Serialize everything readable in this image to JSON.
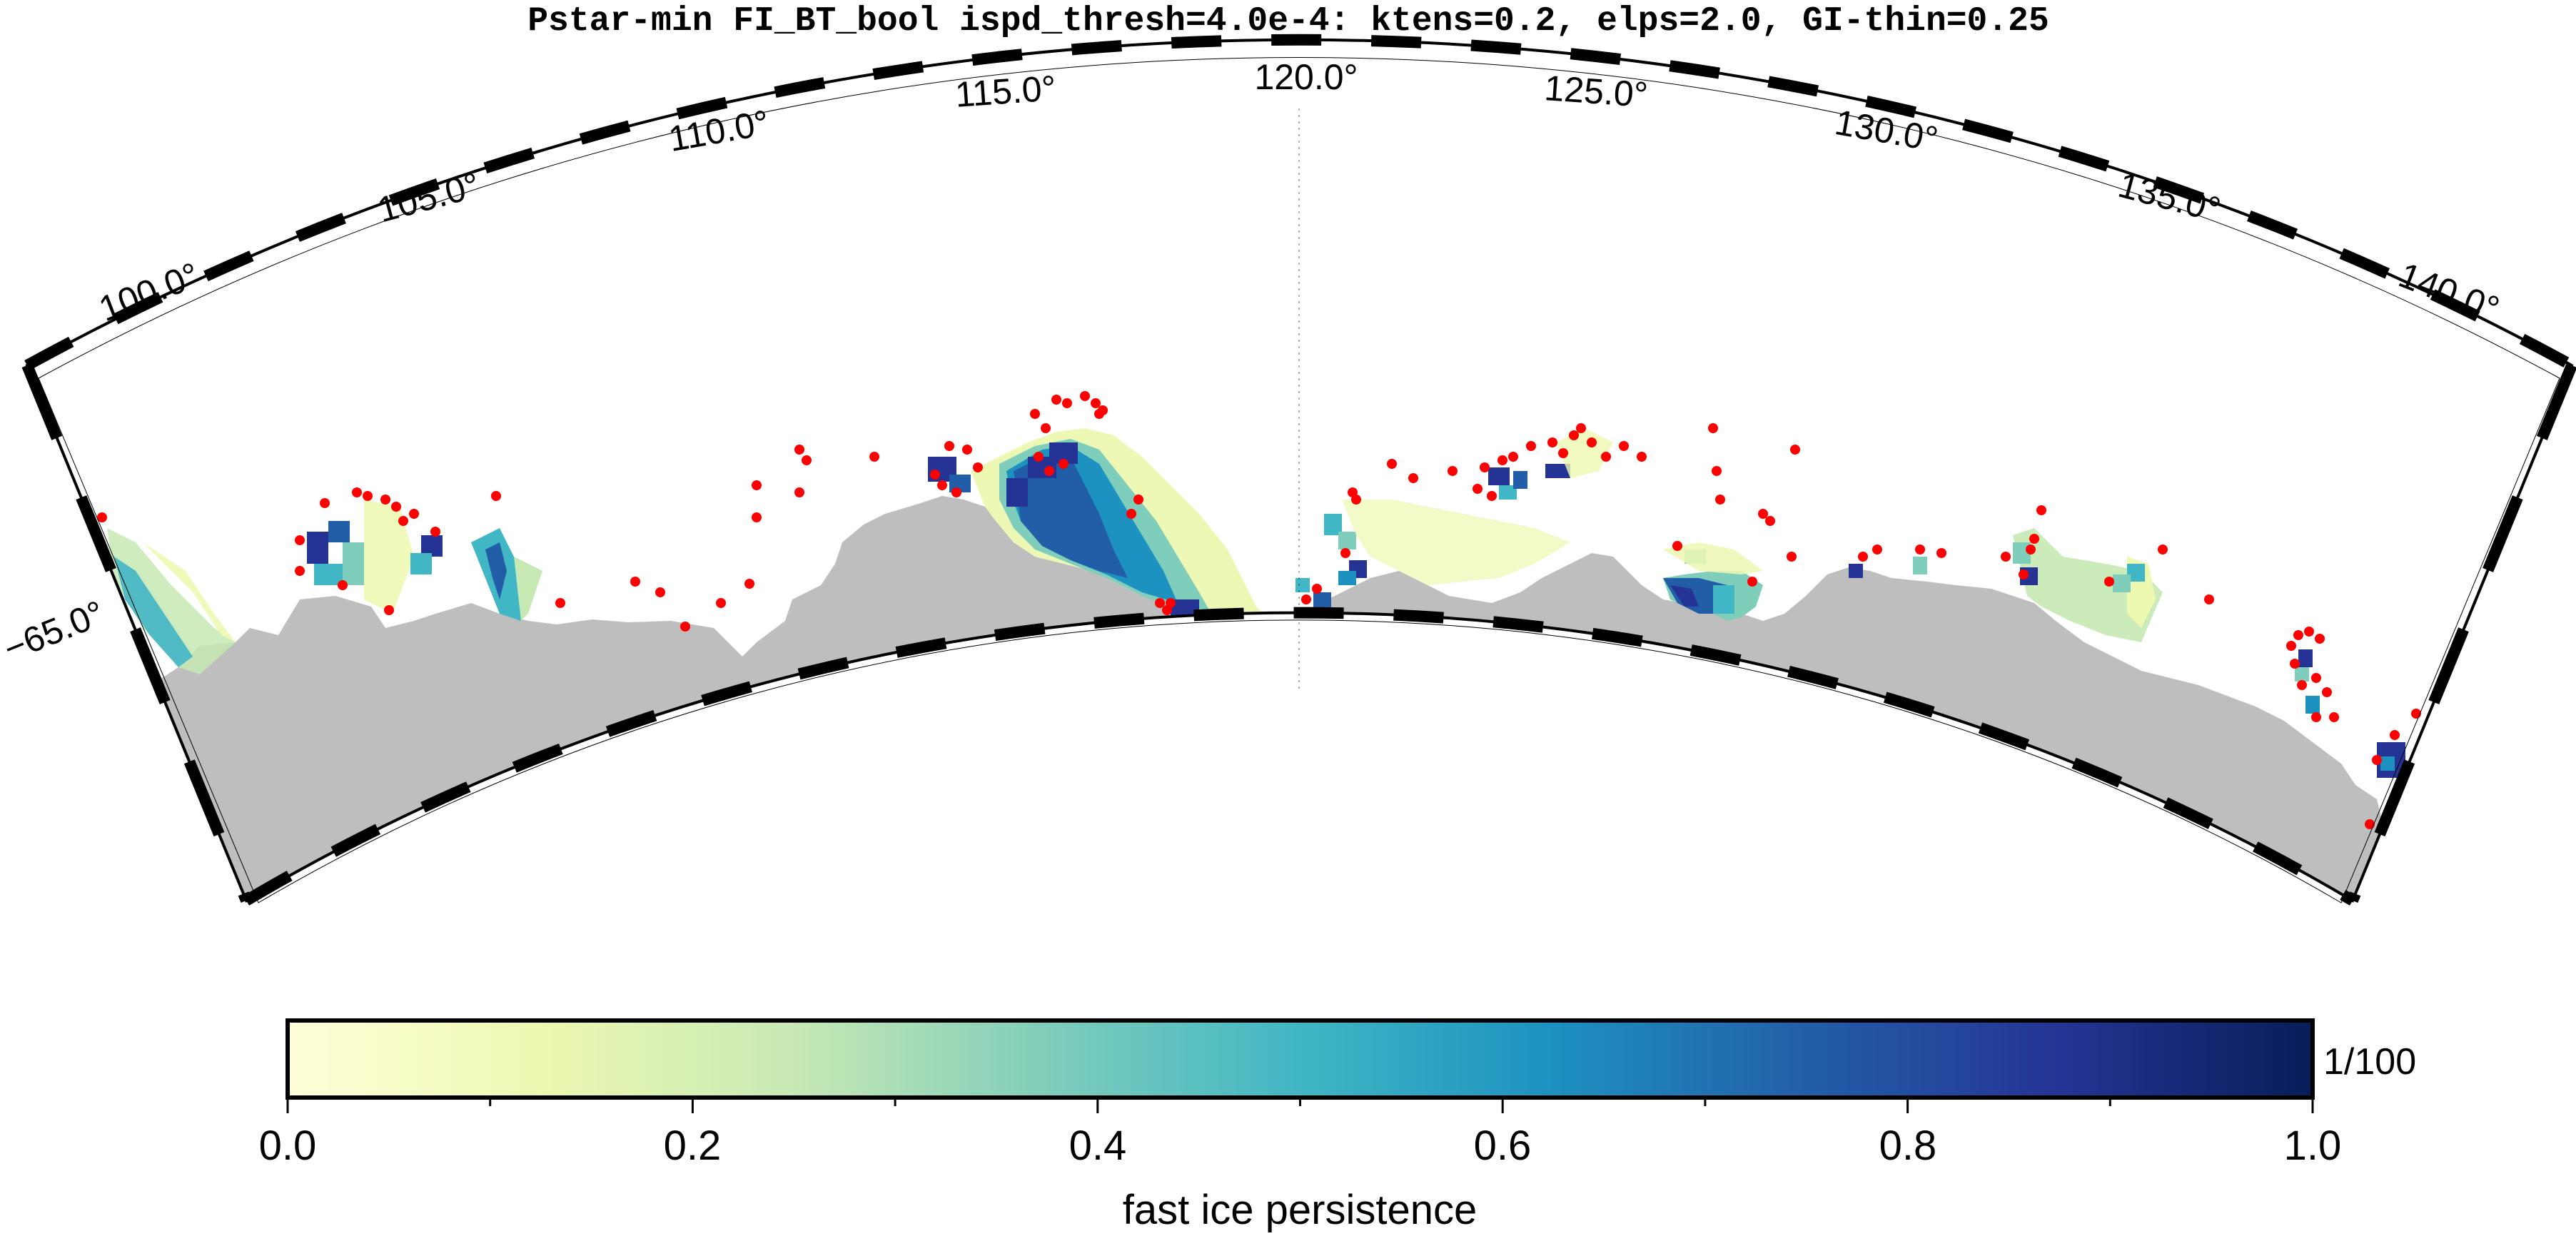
{
  "title": "Pstar-min FI_BT_bool ispd_thresh=4.0e-4: ktens=0.2, elps=2.0, GI-thin=0.25",
  "map": {
    "lon_labels": [
      {
        "value": 100.0,
        "text": "100.0°"
      },
      {
        "value": 105.0,
        "text": "105.0°"
      },
      {
        "value": 110.0,
        "text": "110.0°"
      },
      {
        "value": 115.0,
        "text": "115.0°"
      },
      {
        "value": 120.0,
        "text": "120.0°"
      },
      {
        "value": 125.0,
        "text": "125.0°"
      },
      {
        "value": 130.0,
        "text": "130.0°"
      },
      {
        "value": 135.0,
        "text": "135.0°"
      },
      {
        "value": 140.0,
        "text": "140.0°"
      }
    ],
    "lat_labels": [
      {
        "value": -65.0,
        "text": "−65.0°"
      }
    ],
    "colors": {
      "land": "#bebebe",
      "marker": "#ff0000",
      "frame": "#000000"
    }
  },
  "colorbar": {
    "ticks": [
      {
        "value": 0.0,
        "text": "0.0"
      },
      {
        "value": 0.2,
        "text": "0.2"
      },
      {
        "value": 0.4,
        "text": "0.4"
      },
      {
        "value": 0.6,
        "text": "0.6"
      },
      {
        "value": 0.8,
        "text": "0.8"
      },
      {
        "value": 1.0,
        "text": "1.0"
      }
    ],
    "minor_ticks": [
      0.1,
      0.3,
      0.5,
      0.7,
      0.9
    ],
    "scale_label": "1/100",
    "label": "fast ice persistence",
    "cmap": [
      "#ffffd9",
      "#edf8b1",
      "#c7e9b4",
      "#7fcdbb",
      "#41b6c4",
      "#1d91c0",
      "#225ea8",
      "#253494",
      "#081d58"
    ]
  }
}
